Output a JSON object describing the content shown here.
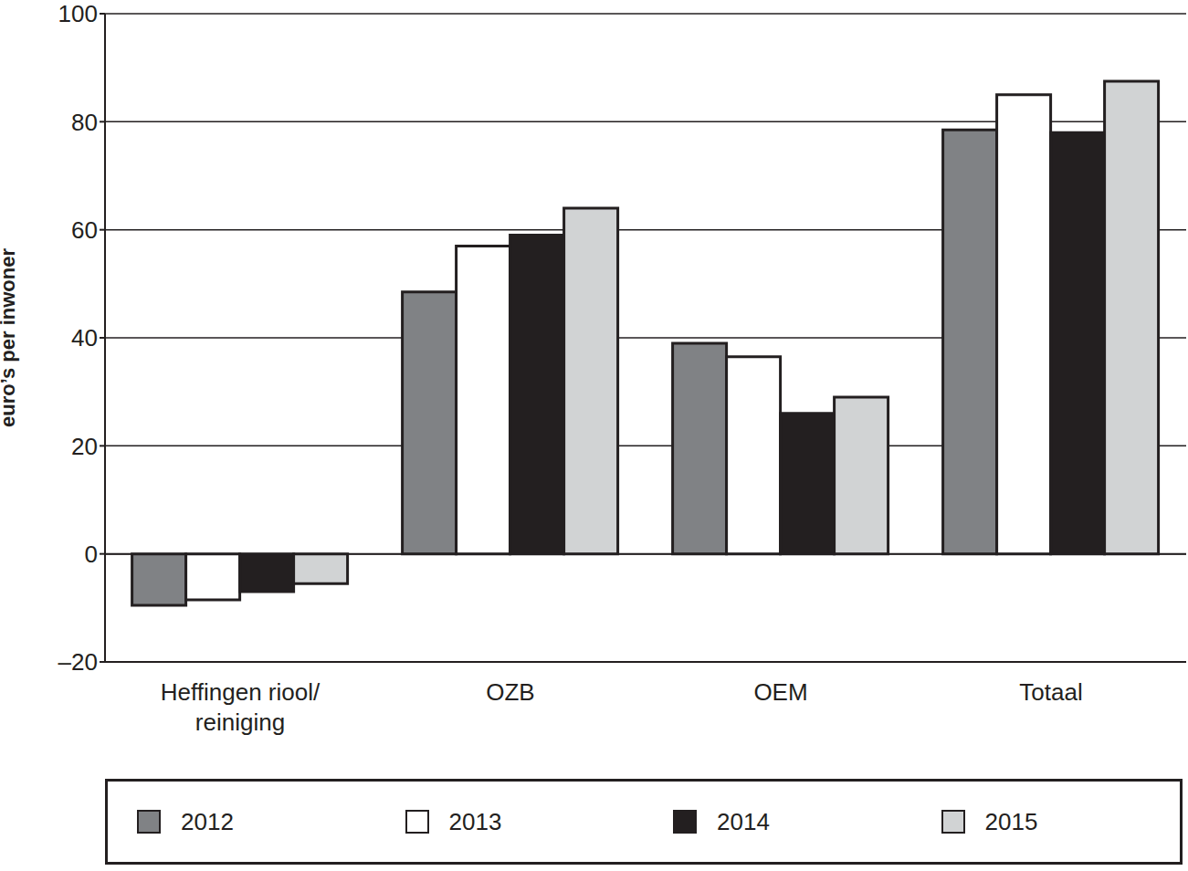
{
  "chart_data": {
    "type": "bar",
    "y_label": "euro’s per inwoner",
    "categories": [
      "Heffingen riool/reiniging",
      "OZB",
      "OEM",
      "Totaal"
    ],
    "series": [
      {
        "name": "2012",
        "color": "#808285",
        "values": [
          -9.5,
          48.5,
          39,
          78.5
        ]
      },
      {
        "name": "2013",
        "color": "#ffffff",
        "values": [
          -8.5,
          57,
          36.5,
          85
        ]
      },
      {
        "name": "2014",
        "color": "#231f20",
        "values": [
          -7,
          59,
          26,
          78
        ]
      },
      {
        "name": "2015",
        "color": "#d1d3d4",
        "values": [
          -5.5,
          64,
          29,
          87.5
        ]
      }
    ],
    "ylim": [
      -20,
      100
    ],
    "yticks": [
      {
        "value": -20,
        "label": "–20"
      },
      0,
      20,
      40,
      60,
      80,
      100
    ],
    "grid": true,
    "legend": "bottom"
  }
}
